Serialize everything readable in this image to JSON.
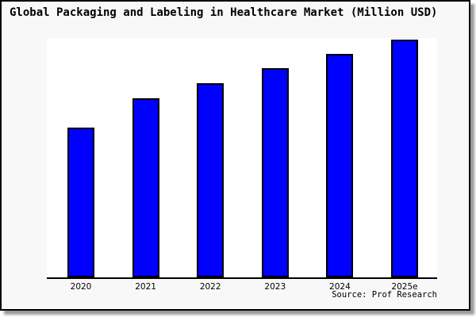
{
  "frame": {
    "background": "#f8f8f8",
    "border_color": "#000000",
    "shadow_color": "#999999"
  },
  "chart_data": {
    "type": "bar",
    "title": "Global Packaging and Labeling in Healthcare Market (Million USD)",
    "categories": [
      "2020",
      "2021",
      "2022",
      "2023",
      "2024",
      "2025e"
    ],
    "values": [
      189,
      226,
      245,
      264,
      282,
      300
    ],
    "value_note": "no y-axis ticks or labels shown in chart; values are relative bar heights read from pixels",
    "ylim": [
      0,
      302
    ],
    "xlabel": "",
    "ylabel": "",
    "grid": false,
    "legend": "none",
    "bar_color": "#0000ff",
    "bar_edge_color": "#000000",
    "plot_background": "#ffffff",
    "axis_line_color": "#000000"
  },
  "source": {
    "label": "Source: Prof Research"
  }
}
